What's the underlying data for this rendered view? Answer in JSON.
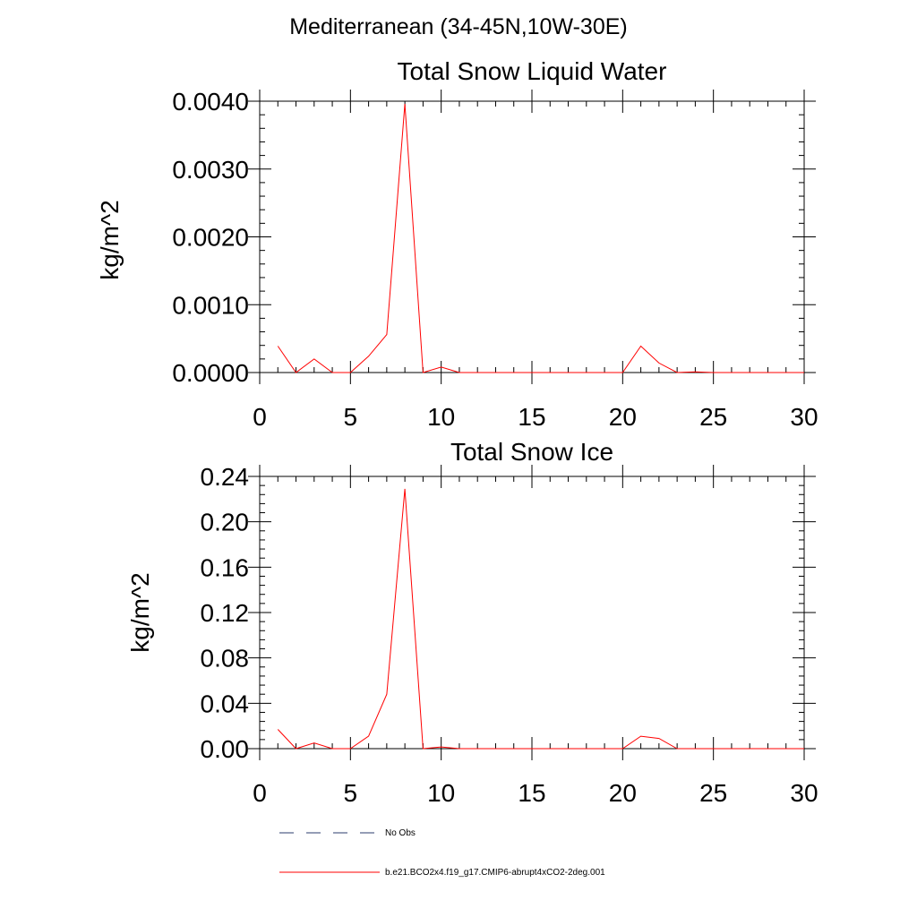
{
  "figure": {
    "title": "Mediterranean (34-45N,10W-30E)"
  },
  "legend": {
    "items": [
      {
        "label": "No Obs",
        "color": "#2b3b6e",
        "dash": true
      },
      {
        "label": "b.e21.BCO2x4.f19_g17.CMIP6-abrupt4xCO2-2deg.001",
        "color": "#ff0000",
        "dash": false
      }
    ]
  },
  "chart_data": [
    {
      "type": "line",
      "title": "Total Snow Liquid Water",
      "xlabel": "",
      "ylabel": "kg/m^2",
      "xlim": [
        0,
        30
      ],
      "ylim": [
        0,
        0.004
      ],
      "xticks": [
        "0",
        "5",
        "10",
        "15",
        "20",
        "25",
        "30"
      ],
      "yticks": [
        "0.0000",
        "0.0010",
        "0.0020",
        "0.0030",
        "0.0040"
      ],
      "grid": false,
      "series": [
        {
          "name": "b.e21.BCO2x4.f19_g17.CMIP6-abrupt4xCO2-2deg.001",
          "color": "#ff0000",
          "x": [
            1,
            2,
            3,
            4,
            5,
            6,
            7,
            8,
            9,
            10,
            11,
            12,
            13,
            14,
            15,
            16,
            17,
            18,
            19,
            20,
            21,
            22,
            23,
            24,
            25,
            26,
            27,
            28,
            29,
            30
          ],
          "y": [
            0.00039,
            0.0,
            0.0002,
            0.0,
            0.0,
            0.00024,
            0.00056,
            0.00396,
            0.0,
            8e-05,
            0.0,
            0.0,
            0.0,
            0.0,
            0.0,
            0.0,
            0.0,
            0.0,
            0.0,
            0.0,
            0.00039,
            0.00014,
            0.0,
            1e-05,
            0.0,
            0.0,
            0.0,
            0.0,
            0.0,
            0.0
          ]
        }
      ]
    },
    {
      "type": "line",
      "title": "Total Snow Ice",
      "xlabel": "",
      "ylabel": "kg/m^2",
      "xlim": [
        0,
        30
      ],
      "ylim": [
        0,
        0.24
      ],
      "xticks": [
        "0",
        "5",
        "10",
        "15",
        "20",
        "25",
        "30"
      ],
      "yticks": [
        "0.00",
        "0.04",
        "0.08",
        "0.12",
        "0.16",
        "0.20",
        "0.24"
      ],
      "grid": false,
      "series": [
        {
          "name": "b.e21.BCO2x4.f19_g17.CMIP6-abrupt4xCO2-2deg.001",
          "color": "#ff0000",
          "x": [
            1,
            2,
            3,
            4,
            5,
            6,
            7,
            8,
            9,
            10,
            11,
            12,
            13,
            14,
            15,
            16,
            17,
            18,
            19,
            20,
            21,
            22,
            23,
            24,
            25,
            26,
            27,
            28,
            29,
            30
          ],
          "y": [
            0.017,
            0.0,
            0.005,
            0.0,
            0.0,
            0.011,
            0.048,
            0.229,
            0.0,
            0.0015,
            0.0,
            0.0,
            0.0,
            0.0,
            0.0,
            0.0,
            0.0,
            0.0,
            0.0,
            0.0,
            0.011,
            0.009,
            0.0,
            0.0,
            0.0,
            0.0,
            0.0,
            0.0,
            0.0,
            0.0
          ]
        }
      ]
    }
  ]
}
